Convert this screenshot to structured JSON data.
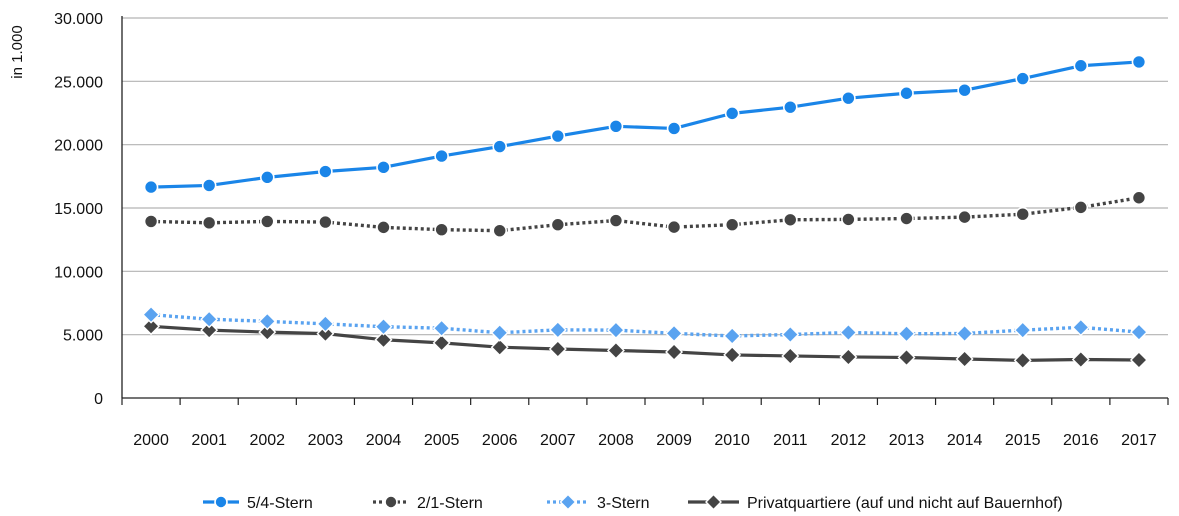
{
  "chart_data": {
    "type": "line",
    "title": "",
    "xlabel": "",
    "ylabel": "in 1.000",
    "ylim": [
      0,
      30000
    ],
    "yticks": [
      {
        "value": 0,
        "label": "0"
      },
      {
        "value": 5000,
        "label": "5.000"
      },
      {
        "value": 10000,
        "label": "10.000"
      },
      {
        "value": 15000,
        "label": "15.000"
      },
      {
        "value": 20000,
        "label": "20.000"
      },
      {
        "value": 25000,
        "label": "25.000"
      },
      {
        "value": 30000,
        "label": "30.000"
      }
    ],
    "grid": true,
    "legend_position": "bottom",
    "categories": [
      "2000",
      "2001",
      "2002",
      "2003",
      "2004",
      "2005",
      "2006",
      "2007",
      "2008",
      "2009",
      "2010",
      "2011",
      "2012",
      "2013",
      "2014",
      "2015",
      "2016",
      "2017"
    ],
    "series": [
      {
        "name": "5/4-Stern",
        "color": "#1a85e8",
        "style": "solid",
        "marker": "circle",
        "values": [
          16650,
          16780,
          17420,
          17880,
          18210,
          19100,
          19850,
          20680,
          21450,
          21280,
          22470,
          22960,
          23670,
          24060,
          24300,
          25220,
          26230,
          26530
        ]
      },
      {
        "name": "2/1-Stern",
        "color": "#444444",
        "style": "dotted",
        "marker": "circle",
        "values": [
          13940,
          13830,
          13940,
          13890,
          13470,
          13290,
          13210,
          13680,
          14010,
          13490,
          13680,
          14070,
          14100,
          14170,
          14280,
          14510,
          15050,
          15810
        ]
      },
      {
        "name": "3-Stern",
        "color": "#5aa3f0",
        "style": "dotted",
        "marker": "diamond",
        "values": [
          6580,
          6220,
          6050,
          5850,
          5630,
          5510,
          5150,
          5380,
          5360,
          5100,
          4900,
          5010,
          5170,
          5070,
          5090,
          5360,
          5580,
          5200
        ]
      },
      {
        "name": "Privatquartiere (auf und nicht auf Bauernhof)",
        "color": "#444444",
        "style": "solid",
        "marker": "diamond",
        "values": [
          5660,
          5360,
          5200,
          5080,
          4600,
          4350,
          4010,
          3870,
          3750,
          3630,
          3400,
          3320,
          3240,
          3200,
          3080,
          2970,
          3040,
          3000
        ]
      }
    ]
  }
}
